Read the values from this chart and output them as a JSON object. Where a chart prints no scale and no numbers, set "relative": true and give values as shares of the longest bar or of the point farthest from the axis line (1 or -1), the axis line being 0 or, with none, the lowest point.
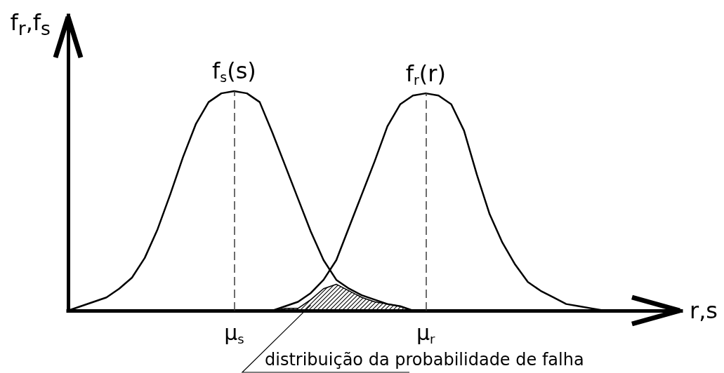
{
  "chart_data": {
    "type": "line",
    "relative": true,
    "xlabel": "r,s",
    "ylabel": "f$_{r}$,f$_{s}$",
    "categories": [
      null,
      null,
      null,
      null,
      null,
      null,
      null,
      null,
      null,
      null,
      null,
      null,
      null,
      "μ$_{s}$",
      null,
      null,
      null,
      null,
      null,
      null,
      null,
      null,
      null,
      null,
      null,
      null,
      null,
      null,
      "μ$_{r}$",
      null,
      null,
      null,
      null,
      null,
      null,
      null,
      null,
      null,
      null,
      null,
      null,
      null,
      null,
      null,
      null,
      null,
      null,
      null,
      null
    ],
    "series": [
      {
        "name": "f$_{s}$(s)",
        "color": "#000000",
        "values": [
          0,
          0.02,
          0.04,
          0.06,
          0.1,
          0.15,
          0.24,
          0.37,
          0.53,
          0.7,
          0.85,
          0.95,
          0.99,
          1,
          0.99,
          0.95,
          0.81,
          0.66,
          0.51,
          0.36,
          0.23,
          0.14,
          0.1,
          0.07,
          0.05,
          0.03,
          0.02,
          0,
          null,
          null,
          null,
          null,
          null,
          null,
          null,
          null,
          null,
          null,
          null,
          null,
          null,
          null,
          null,
          null,
          null,
          null,
          null,
          null,
          null
        ]
      },
      {
        "name": "f$_{r}$(r)",
        "color": "#000000",
        "values": [
          null,
          null,
          null,
          null,
          null,
          null,
          null,
          null,
          null,
          null,
          null,
          null,
          null,
          null,
          null,
          null,
          0,
          0.02,
          0.04,
          0.08,
          0.14,
          0.23,
          0.38,
          0.53,
          0.68,
          0.84,
          0.94,
          0.98,
          0.99,
          0.98,
          0.94,
          0.82,
          0.62,
          0.44,
          0.31,
          0.21,
          0.13,
          0.09,
          0.06,
          0.03,
          0.02,
          0.01,
          0,
          null,
          null,
          null,
          null,
          null,
          null
        ]
      },
      {
        "type": "area",
        "color": "#000000",
        "values": [
          null,
          null,
          null,
          null,
          null,
          null,
          null,
          null,
          null,
          null,
          null,
          null,
          null,
          null,
          null,
          null,
          0,
          0.01,
          0.01,
          0.05,
          0.1,
          0.12,
          0.09,
          0.06,
          0.04,
          0.03,
          0.02,
          0,
          null,
          null,
          null,
          null,
          null,
          null,
          null,
          null,
          null,
          null,
          null,
          null,
          null,
          null,
          null,
          null,
          null,
          null,
          null,
          null,
          null
        ]
      }
    ],
    "ref_lines": [
      {
        "axis": "x",
        "value": "μ$_{s}$",
        "line_style": "dashed",
        "color": "#3c3c3c"
      },
      {
        "axis": "x",
        "value": "μ$_{r}$",
        "line_style": "dashed",
        "color": "#3c3c3c"
      }
    ],
    "annotations": [
      "distribuição da probabilidade de falha"
    ]
  }
}
